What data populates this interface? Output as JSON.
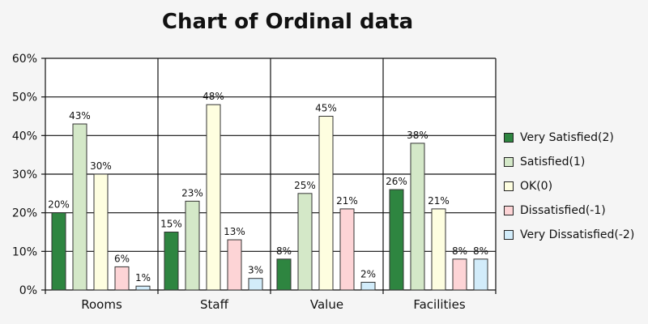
{
  "chart_data": {
    "type": "bar",
    "title": "Chart of Ordinal data",
    "categories": [
      "Rooms",
      "Staff",
      "Value",
      "Facilities"
    ],
    "series": [
      {
        "name": "Very Satisfied(2)",
        "color": "#2e8540",
        "values": [
          20,
          15,
          8,
          26
        ],
        "labels": [
          "20%",
          "15%",
          "8%",
          "26%"
        ]
      },
      {
        "name": "Satisfied(1)",
        "color": "#d4e8c8",
        "values": [
          43,
          23,
          25,
          38
        ],
        "labels": [
          "43%",
          "23%",
          "25%",
          "38%"
        ]
      },
      {
        "name": "OK(0)",
        "color": "#fefee0",
        "values": [
          30,
          48,
          45,
          21
        ],
        "labels": [
          "30%",
          "48%",
          "45%",
          "21%"
        ]
      },
      {
        "name": "Dissatisfied(-1)",
        "color": "#fdd4d6",
        "values": [
          6,
          13,
          21,
          8
        ],
        "labels": [
          "6%",
          "13%",
          "21%",
          "8%"
        ]
      },
      {
        "name": "Very Dissatisfied(-2)",
        "color": "#d2ecfa",
        "values": [
          1,
          3,
          2,
          8
        ],
        "labels": [
          "1%",
          "3%",
          "2%",
          "8%"
        ]
      }
    ],
    "y_ticks": [
      {
        "value": 0,
        "label": "0%"
      },
      {
        "value": 10,
        "label": "10%"
      },
      {
        "value": 20,
        "label": "20%"
      },
      {
        "value": 30,
        "label": "30%"
      },
      {
        "value": 40,
        "label": "40%"
      },
      {
        "value": 50,
        "label": "50%"
      },
      {
        "value": 60,
        "label": "60%"
      }
    ],
    "ylim": [
      0,
      60
    ],
    "grid": true,
    "legend_position": "right"
  }
}
